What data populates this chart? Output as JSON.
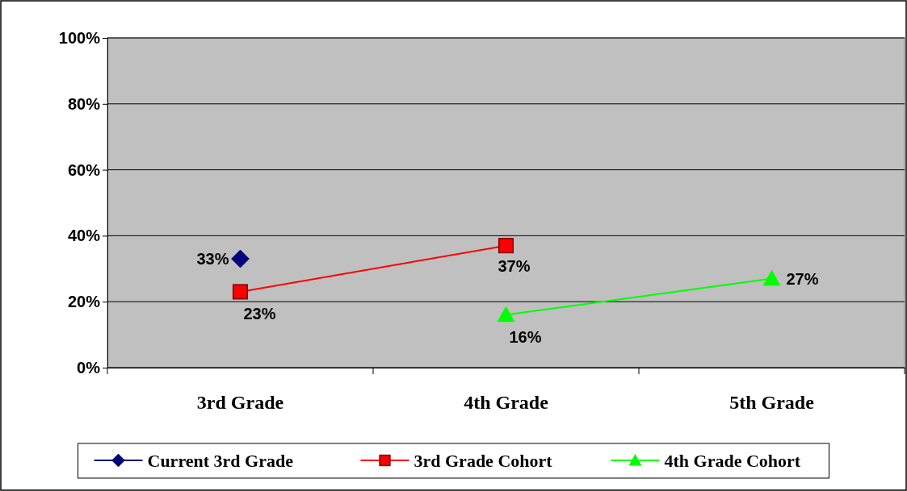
{
  "chart_data": {
    "type": "line",
    "categories": [
      "3rd Grade",
      "4th Grade",
      "5th Grade"
    ],
    "series": [
      {
        "name": "Current 3rd Grade",
        "color": "#000080",
        "marker": "diamond",
        "values": [
          33,
          null,
          null
        ],
        "value_labels": [
          "33%",
          null,
          null
        ]
      },
      {
        "name": "3rd Grade Cohort",
        "color": "#ff0000",
        "marker": "square",
        "values": [
          23,
          37,
          null
        ],
        "value_labels": [
          "23%",
          "37%",
          null
        ]
      },
      {
        "name": "4th Grade Cohort",
        "color": "#00ff00",
        "marker": "triangle",
        "values": [
          null,
          16,
          27
        ],
        "value_labels": [
          null,
          "16%",
          "27%"
        ]
      }
    ],
    "ylim": [
      0,
      100
    ],
    "yticks": [
      {
        "value": 0,
        "label": "0%"
      },
      {
        "value": 20,
        "label": "20%"
      },
      {
        "value": 40,
        "label": "40%"
      },
      {
        "value": 60,
        "label": "60%"
      },
      {
        "value": 80,
        "label": "80%"
      },
      {
        "value": 100,
        "label": "100%"
      }
    ],
    "grid": "y",
    "legend": "bottom",
    "line_style": "solid"
  }
}
